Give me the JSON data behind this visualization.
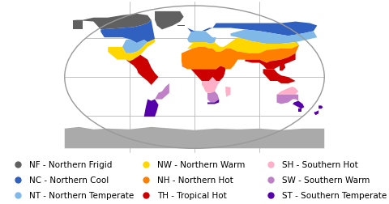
{
  "legend_items": [
    {
      "label": "NF - Northern Frigid",
      "color": "#606060"
    },
    {
      "label": "NC - Northern Cool",
      "color": "#3060C0"
    },
    {
      "label": "NT - Northern Temperate",
      "color": "#80B8E8"
    },
    {
      "label": "NW - Northern Warm",
      "color": "#FFD700"
    },
    {
      "label": "NH - Northern Hot",
      "color": "#FF8000"
    },
    {
      "label": "TH - Tropical Hot",
      "color": "#CC0000"
    },
    {
      "label": "SH - Southern Hot",
      "color": "#FFB0C8"
    },
    {
      "label": "SW - Southern Warm",
      "color": "#C080C8"
    },
    {
      "label": "ST - Southern Temperate",
      "color": "#5500AA"
    }
  ],
  "background_color": "#ffffff",
  "grid_color": "#aaaaaa",
  "ellipse_edge_color": "#999999",
  "ocean_color": "#ffffff",
  "antarctica_color": "#aaaaaa",
  "font_size": 7.5
}
